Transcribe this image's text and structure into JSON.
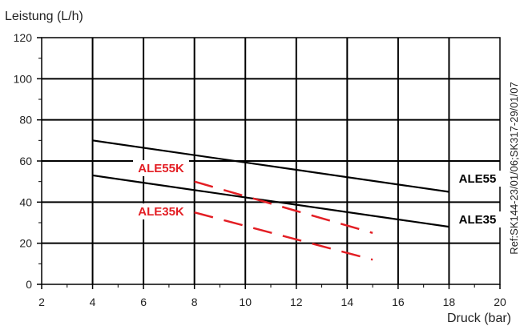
{
  "chart_data": {
    "type": "line",
    "title": "",
    "ylabel": "Leistung (L/h)",
    "xlabel": "Druck (bar)",
    "xlim": [
      2,
      20
    ],
    "ylim": [
      0,
      120
    ],
    "x_ticks": [
      2,
      4,
      6,
      8,
      10,
      12,
      14,
      16,
      18,
      20
    ],
    "y_ticks": [
      0,
      20,
      40,
      60,
      80,
      100,
      120
    ],
    "x_tick_labels": [
      "2",
      "4",
      "6",
      "8",
      "10",
      "12",
      "14",
      "16",
      "18",
      "20"
    ],
    "y_tick_labels": [
      "0",
      "20",
      "40",
      "60",
      "80",
      "100",
      "120"
    ],
    "grid": true,
    "series": [
      {
        "name": "ALE55",
        "color": "#000000",
        "style": "solid",
        "x": [
          4,
          18
        ],
        "y": [
          70,
          45
        ]
      },
      {
        "name": "ALE35",
        "color": "#000000",
        "style": "solid",
        "x": [
          4,
          18
        ],
        "y": [
          53,
          28
        ]
      },
      {
        "name": "ALE55K",
        "color": "#e31e24",
        "style": "dashed",
        "x": [
          8,
          15
        ],
        "y": [
          50,
          25
        ]
      },
      {
        "name": "ALE35K",
        "color": "#e31e24",
        "style": "dashed",
        "x": [
          8,
          15
        ],
        "y": [
          35,
          12
        ]
      }
    ],
    "annotation": "Ref:SK144-23/01/06;SK317-29/01/07"
  }
}
